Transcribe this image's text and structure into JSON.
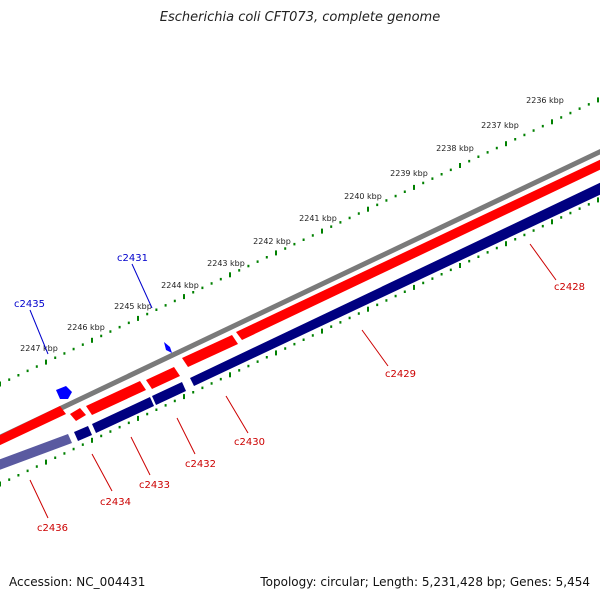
{
  "title": "Escherichia coli CFT073, complete genome",
  "footer": {
    "accession": "Accession: NC_004431",
    "summary": "Topology: circular; Length: 5,231,428 bp; Genes: 5,454"
  },
  "scale_labels": [
    "2236 kbp",
    "2237 kbp",
    "2238 kbp",
    "2239 kbp",
    "2240 kbp",
    "2241 kbp",
    "2242 kbp",
    "2243 kbp",
    "2244 kbp",
    "2245 kbp",
    "2246 kbp",
    "2247 kbp"
  ],
  "gene_labels_top": [
    "c2431",
    "c2435"
  ],
  "gene_labels_bottom": [
    "c2428",
    "c2429",
    "c2430",
    "c2432",
    "c2433",
    "c2434",
    "c2436"
  ],
  "colors": {
    "forward": "#ff0000",
    "reverse": "#000080",
    "backbone": "#808080",
    "ticks": "#008000",
    "label_top": "#0000cc",
    "label_bottom": "#cc0000",
    "marker": "#0000ff"
  }
}
